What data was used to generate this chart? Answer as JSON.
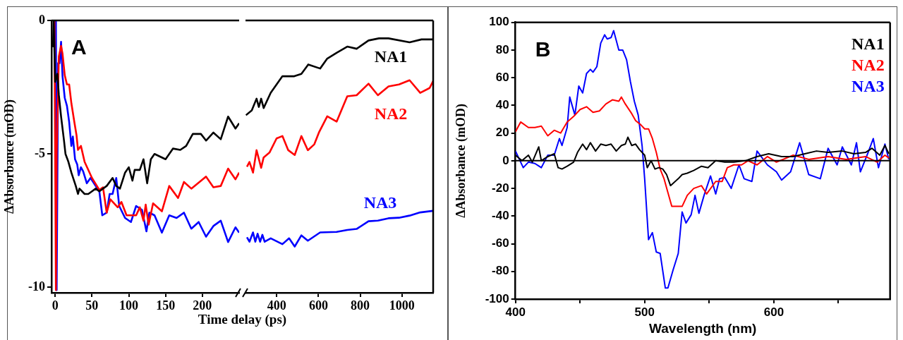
{
  "chart_data": [
    {
      "type": "line",
      "ylabel": "ΔAbsorbance (mOD)",
      "xlabel": "Time delay (ps)",
      "annotations": [
        "A"
      ],
      "xlim": [
        -5,
        250
      ],
      "xticks": [
        0,
        50,
        100,
        150,
        200
      ],
      "ylim": [
        -10.2,
        0
      ],
      "yticks": [
        0,
        -5,
        -10
      ],
      "series": [
        {
          "color": "#000000",
          "x": [
            -3,
            -2,
            0,
            3,
            5,
            8,
            12,
            14,
            18,
            22,
            28,
            31,
            33,
            40,
            45,
            50,
            55,
            60,
            65,
            70,
            78,
            83,
            88,
            95,
            100,
            105,
            108,
            115,
            120,
            125,
            130,
            135,
            150,
            160,
            170,
            178,
            187,
            198,
            205,
            215,
            225,
            235,
            245,
            250
          ],
          "values": [
            -1.0,
            0,
            -2.3,
            -2.0,
            -2.8,
            -3.6,
            -4.5,
            -5.0,
            -5.3,
            -5.7,
            -6.2,
            -6.5,
            -6.3,
            -6.5,
            -6.5,
            -6.4,
            -6.3,
            -6.4,
            -6.3,
            -6.2,
            -5.9,
            -6.2,
            -6.3,
            -5.7,
            -5.5,
            -6.0,
            -5.6,
            -5.6,
            -5.2,
            -6.1,
            -5.2,
            -5.0,
            -5.2,
            -4.8,
            -4.85,
            -4.7,
            -4.25,
            -4.25,
            -4.5,
            -4.2,
            -4.45,
            -3.6,
            -4.05,
            -3.85
          ]
        },
        {
          "color": "#ff0000",
          "x": [
            -1,
            0,
            1,
            2,
            5,
            8,
            10,
            13,
            16,
            19,
            22,
            26,
            29,
            31,
            35,
            40,
            50,
            60,
            65,
            70,
            75,
            85,
            90,
            97,
            105,
            110,
            115,
            120,
            123,
            127,
            133,
            145,
            155,
            167,
            175,
            185,
            205,
            215,
            225,
            235,
            245,
            250
          ],
          "values": [
            0,
            -5,
            -10.1,
            -5,
            -1.35,
            -0.95,
            -1.25,
            -2.05,
            -2.4,
            -2.4,
            -3.1,
            -3.8,
            -4.3,
            -4.85,
            -4.7,
            -5.3,
            -5.9,
            -6.35,
            -6.25,
            -7.2,
            -6.7,
            -7.0,
            -6.8,
            -7.3,
            -7.3,
            -7.3,
            -7.0,
            -7.5,
            -6.9,
            -7.65,
            -6.85,
            -7.15,
            -6.2,
            -6.65,
            -6.05,
            -6.3,
            -5.85,
            -6.25,
            -6.2,
            -5.55,
            -5.95,
            -5.7
          ]
        },
        {
          "color": "#0000ff",
          "x": [
            1,
            2,
            4,
            6,
            8,
            10,
            13,
            16,
            19,
            22,
            24,
            27,
            30,
            32,
            35,
            38,
            43,
            48,
            55,
            60,
            64,
            70,
            74,
            78,
            83,
            87,
            95,
            103,
            110,
            118,
            124,
            128,
            135,
            145,
            155,
            165,
            175,
            185,
            195,
            205,
            215,
            225,
            235,
            245,
            250
          ],
          "values": [
            0,
            -10.1,
            -1.6,
            -1.6,
            -0.8,
            -2.1,
            -2.9,
            -3.2,
            -3.8,
            -4.7,
            -4.35,
            -5.2,
            -5.4,
            -5.8,
            -5.5,
            -5.65,
            -6.1,
            -5.9,
            -6.2,
            -6.4,
            -7.3,
            -7.2,
            -6.5,
            -6.5,
            -5.9,
            -6.95,
            -7.4,
            -7.55,
            -6.95,
            -7.1,
            -7.9,
            -7.2,
            -7.3,
            -7.95,
            -7.3,
            -7.4,
            -7.2,
            -7.8,
            -7.55,
            -8.1,
            -7.7,
            -7.5,
            -8.3,
            -7.75,
            -7.95
          ]
        }
      ]
    },
    {
      "type": "line",
      "tick_labels": "x",
      "xlim": [
        250,
        1150
      ],
      "xticks": [
        400,
        600,
        800,
        1000
      ],
      "ylim": [
        -10.2,
        0
      ],
      "yticks": [
        0,
        -5,
        -10
      ],
      "series": [
        {
          "name": "NA1",
          "color": "#000000",
          "x": [
            252,
            280,
            303,
            314,
            325,
            337,
            371,
            399,
            427,
            484,
            518,
            551,
            608,
            642,
            687,
            738,
            783,
            840,
            890,
            936,
            1037,
            1094,
            1150
          ],
          "values": [
            -3.55,
            -3.37,
            -2.93,
            -3.24,
            -2.93,
            -3.28,
            -2.71,
            -2.4,
            -2.09,
            -2.09,
            -2.0,
            -1.65,
            -1.8,
            -1.43,
            -1.21,
            -0.98,
            -1.06,
            -0.75,
            -0.67,
            -0.67,
            -0.82,
            -0.71,
            -0.71
          ]
        },
        {
          "name": "NA2",
          "color": "#ff0000",
          "x": [
            257,
            269,
            286,
            303,
            325,
            337,
            365,
            399,
            427,
            455,
            486,
            518,
            549,
            580,
            602,
            642,
            687,
            738,
            783,
            840,
            885,
            936,
            986,
            1037,
            1088,
            1133,
            1150
          ],
          "values": [
            -5.48,
            -5.3,
            -5.7,
            -4.86,
            -5.52,
            -5.13,
            -4.95,
            -4.42,
            -4.33,
            -4.86,
            -5.04,
            -4.33,
            -4.86,
            -4.64,
            -4.2,
            -3.59,
            -3.79,
            -2.84,
            -2.8,
            -2.37,
            -2.8,
            -2.47,
            -2.4,
            -2.24,
            -2.71,
            -2.53,
            -2.27
          ]
        },
        {
          "name": "NA3",
          "color": "#0000ff",
          "x": [
            257,
            269,
            286,
            297,
            308,
            320,
            331,
            342,
            371,
            427,
            459,
            486,
            518,
            549,
            608,
            687,
            738,
            783,
            840,
            885,
            936,
            986,
            1037,
            1088,
            1150
          ],
          "values": [
            -8.12,
            -8.29,
            -7.94,
            -8.29,
            -7.99,
            -8.29,
            -8.03,
            -8.29,
            -8.16,
            -8.38,
            -8.16,
            -8.47,
            -8.05,
            -8.25,
            -7.94,
            -7.92,
            -7.85,
            -7.81,
            -7.52,
            -7.5,
            -7.41,
            -7.39,
            -7.31,
            -7.19,
            -7.13
          ]
        }
      ]
    },
    {
      "type": "line",
      "ylabel": "ΔAbsorbance (mOD)",
      "xlabel": "Wavelength (nm)",
      "annotations": [
        "B"
      ],
      "legend": "top right",
      "xlim": [
        400,
        690
      ],
      "xticks": [
        400,
        {
          "value": 450,
          "label": null
        },
        500,
        {
          "value": 550,
          "label": null
        },
        600,
        {
          "value": 650,
          "label": null
        }
      ],
      "ylim": [
        -100,
        100
      ],
      "yticks": [
        -100,
        -80,
        -60,
        -40,
        -20,
        0,
        20,
        40,
        60,
        80,
        100
      ],
      "ref_lines": [
        {
          "axis": "y",
          "value": 0,
          "color": "#000000"
        }
      ],
      "series": [
        {
          "name": "NA1",
          "color": "#000000",
          "x": [
            400,
            405,
            410,
            413,
            418,
            420,
            425,
            430,
            433,
            436,
            440,
            445,
            448,
            452,
            455,
            458,
            462,
            466,
            470,
            474,
            478,
            482,
            485,
            487,
            490,
            493,
            496,
            500,
            502,
            505,
            508,
            511,
            514,
            517,
            520,
            526,
            529,
            533,
            538,
            544,
            549,
            555,
            562,
            569,
            578,
            587,
            596,
            606,
            615,
            624,
            633,
            642,
            653,
            662,
            671,
            676,
            682,
            686,
            689
          ],
          "values": [
            4,
            0,
            4,
            -1,
            10,
            0,
            3,
            5,
            -5,
            -6,
            -4,
            -1,
            6,
            12,
            8,
            13,
            7,
            12,
            11,
            12,
            7,
            11,
            12,
            17,
            11,
            12,
            8,
            4,
            -5,
            0,
            -6,
            -5,
            -6,
            -10,
            -18,
            -13,
            -10,
            -9,
            -7,
            -4,
            -5,
            0,
            -1,
            -1,
            0,
            3,
            5,
            3,
            3,
            5,
            7,
            6,
            7,
            5,
            6,
            9,
            4,
            11,
            5
          ]
        },
        {
          "name": "NA2",
          "color": "#ff0000",
          "x": [
            400,
            404,
            410,
            415,
            420,
            425,
            430,
            435,
            440,
            445,
            450,
            455,
            460,
            465,
            470,
            475,
            480,
            482,
            485,
            490,
            493,
            497,
            500,
            503,
            506,
            509,
            512,
            515,
            518,
            521,
            529,
            533,
            538,
            544,
            548,
            555,
            560,
            564,
            569,
            575,
            580,
            587,
            595,
            602,
            615,
            627,
            642,
            656,
            671,
            680,
            686,
            689
          ],
          "values": [
            21,
            28,
            24,
            24,
            25,
            18,
            22,
            20,
            28,
            32,
            37,
            39,
            35,
            36,
            41,
            44,
            43,
            46,
            41,
            34,
            29,
            26,
            23,
            23,
            16,
            6,
            -6,
            -13,
            -23,
            -33,
            -33,
            -25,
            -20,
            -18,
            -24,
            -15,
            -15,
            -5,
            -3,
            -3,
            0,
            -3,
            3,
            -1,
            4,
            1,
            3,
            1,
            3,
            -1,
            4,
            2
          ]
        },
        {
          "name": "NA3",
          "color": "#0000ff",
          "x": [
            400,
            406,
            410,
            415,
            420,
            425,
            430,
            434,
            436,
            440,
            442,
            446,
            449,
            452,
            455,
            458,
            460,
            463,
            466,
            469,
            471,
            474,
            476,
            478,
            480,
            483,
            486,
            489,
            492,
            495,
            498,
            500,
            503,
            506,
            509,
            512,
            516,
            518,
            522,
            526,
            529,
            532,
            536,
            539,
            542,
            546,
            551,
            555,
            558,
            562,
            567,
            573,
            577,
            583,
            587,
            595,
            602,
            606,
            613,
            620,
            627,
            636,
            642,
            649,
            653,
            660,
            664,
            667,
            673,
            677,
            681,
            686,
            689
          ],
          "values": [
            7,
            -5,
            -1,
            -2,
            -5,
            4,
            4,
            16,
            11,
            24,
            46,
            33,
            54,
            49,
            63,
            66,
            64,
            68,
            85,
            91,
            88,
            89,
            94,
            87,
            80,
            80,
            73,
            57,
            43,
            33,
            11,
            -13,
            -57,
            -52,
            -66,
            -67,
            -92,
            -92,
            -79,
            -67,
            -37,
            -45,
            -39,
            -25,
            -38,
            -25,
            -11,
            -24,
            -13,
            -12,
            -20,
            -3,
            -13,
            -15,
            7,
            -3,
            -8,
            -14,
            -8,
            13,
            -10,
            -13,
            9,
            -3,
            10,
            -3,
            13,
            -8,
            6,
            16,
            -5,
            12,
            1
          ]
        }
      ]
    }
  ]
}
